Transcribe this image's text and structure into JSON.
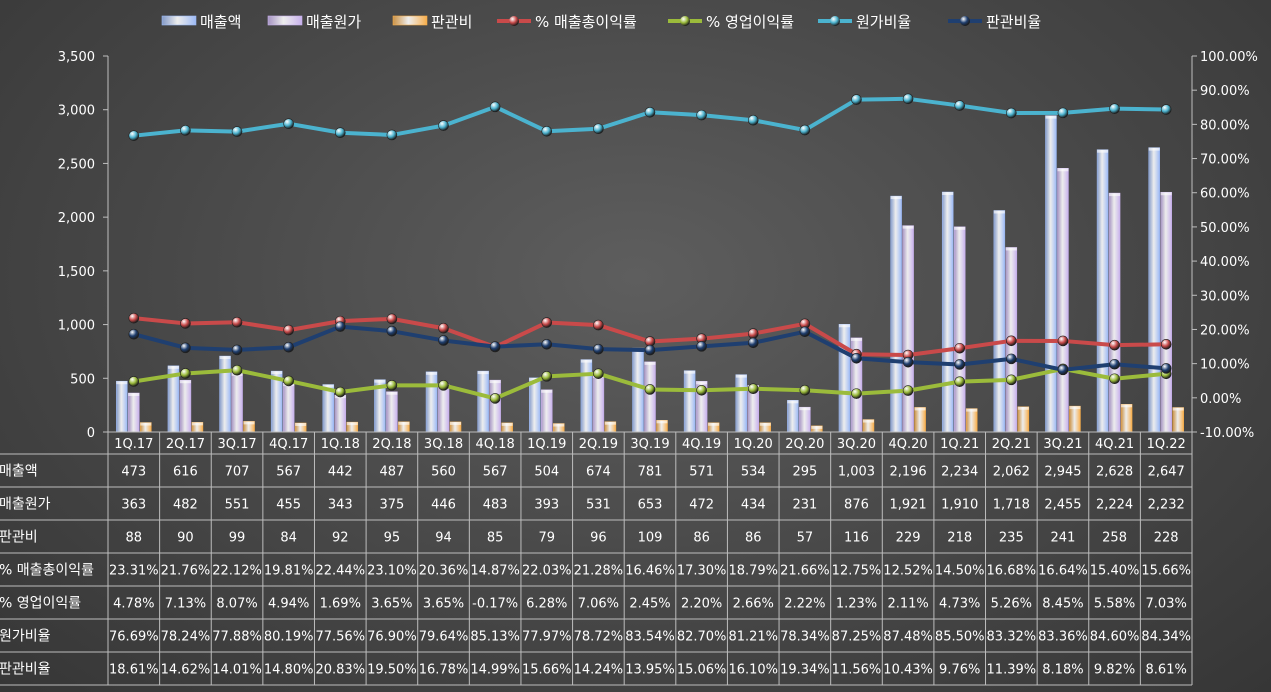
{
  "chart_data": {
    "type": "bar+line",
    "categories": [
      "1Q.17",
      "2Q.17",
      "3Q.17",
      "4Q.17",
      "1Q.18",
      "2Q.18",
      "3Q.18",
      "4Q.18",
      "1Q.19",
      "2Q.19",
      "3Q.19",
      "4Q.19",
      "1Q.20",
      "2Q.20",
      "3Q.20",
      "4Q.20",
      "1Q.21",
      "2Q.21",
      "3Q.21",
      "4Q.21",
      "1Q.22"
    ],
    "y_left": {
      "min": 0,
      "max": 3500,
      "step": 500,
      "ticks": [
        "0",
        "500",
        "1,000",
        "1,500",
        "2,000",
        "2,500",
        "3,000",
        "3,500"
      ]
    },
    "y_right": {
      "min": -10,
      "max": 100,
      "step": 10,
      "ticks": [
        "-10.00%",
        "0.00%",
        "10.00%",
        "20.00%",
        "30.00%",
        "40.00%",
        "50.00%",
        "60.00%",
        "70.00%",
        "80.00%",
        "90.00%",
        "100.00%"
      ]
    },
    "bar_series": [
      {
        "name": "매출액",
        "color": "#9cb9f5",
        "values": [
          473,
          616,
          707,
          567,
          442,
          487,
          560,
          567,
          504,
          674,
          781,
          571,
          534,
          295,
          1003,
          2196,
          2234,
          2062,
          2945,
          2628,
          2647
        ],
        "labels": [
          "473",
          "616",
          "707",
          "567",
          "442",
          "487",
          "560",
          "567",
          "504",
          "674",
          "781",
          "571",
          "534",
          "295",
          "1,003",
          "2,196",
          "2,234",
          "2,062",
          "2,945",
          "2,628",
          "2,647"
        ]
      },
      {
        "name": "매출원가",
        "color": "#c7b0ec",
        "values": [
          363,
          482,
          551,
          455,
          343,
          375,
          446,
          483,
          393,
          531,
          653,
          472,
          434,
          231,
          876,
          1921,
          1910,
          1718,
          2455,
          2224,
          2232
        ],
        "labels": [
          "363",
          "482",
          "551",
          "455",
          "343",
          "375",
          "446",
          "483",
          "393",
          "531",
          "653",
          "472",
          "434",
          "231",
          "876",
          "1,921",
          "1,910",
          "1,718",
          "2,455",
          "2,224",
          "2,232"
        ]
      },
      {
        "name": "판관비",
        "color": "#f7ad4a",
        "values": [
          88,
          90,
          99,
          84,
          92,
          95,
          94,
          85,
          79,
          96,
          109,
          86,
          86,
          57,
          116,
          229,
          218,
          235,
          241,
          258,
          228
        ],
        "labels": [
          "88",
          "90",
          "99",
          "84",
          "92",
          "95",
          "94",
          "85",
          "79",
          "96",
          "109",
          "86",
          "86",
          "57",
          "116",
          "229",
          "218",
          "235",
          "241",
          "258",
          "228"
        ]
      }
    ],
    "line_series": [
      {
        "name": "% 매출총이익률",
        "color": "#c94a4a",
        "values": [
          23.31,
          21.76,
          22.12,
          19.81,
          22.44,
          23.1,
          20.36,
          14.87,
          22.03,
          21.28,
          16.46,
          17.3,
          18.79,
          21.66,
          12.75,
          12.52,
          14.5,
          16.68,
          16.64,
          15.4,
          15.66
        ],
        "labels": [
          "23.31%",
          "21.76%",
          "22.12%",
          "19.81%",
          "22.44%",
          "23.10%",
          "20.36%",
          "14.87%",
          "22.03%",
          "21.28%",
          "16.46%",
          "17.30%",
          "18.79%",
          "21.66%",
          "12.75%",
          "12.52%",
          "14.50%",
          "16.68%",
          "16.64%",
          "15.40%",
          "15.66%"
        ]
      },
      {
        "name": "% 영업이익률",
        "color": "#9bbb3b",
        "values": [
          4.78,
          7.13,
          8.07,
          4.94,
          1.69,
          3.65,
          3.65,
          -0.17,
          6.28,
          7.06,
          2.45,
          2.2,
          2.66,
          2.22,
          1.23,
          2.11,
          4.73,
          5.26,
          8.45,
          5.58,
          7.03
        ],
        "labels": [
          "4.78%",
          "7.13%",
          "8.07%",
          "4.94%",
          "1.69%",
          "3.65%",
          "3.65%",
          "-0.17%",
          "6.28%",
          "7.06%",
          "2.45%",
          "2.20%",
          "2.66%",
          "2.22%",
          "1.23%",
          "2.11%",
          "4.73%",
          "5.26%",
          "8.45%",
          "5.58%",
          "7.03%"
        ]
      },
      {
        "name": "원가비율",
        "color": "#4bb3cf",
        "values": [
          76.69,
          78.24,
          77.88,
          80.19,
          77.56,
          76.9,
          79.64,
          85.13,
          77.97,
          78.72,
          83.54,
          82.7,
          81.21,
          78.34,
          87.25,
          87.48,
          85.5,
          83.32,
          83.36,
          84.6,
          84.34
        ],
        "labels": [
          "76.69%",
          "78.24%",
          "77.88%",
          "80.19%",
          "77.56%",
          "76.90%",
          "79.64%",
          "85.13%",
          "77.97%",
          "78.72%",
          "83.54%",
          "82.70%",
          "81.21%",
          "78.34%",
          "87.25%",
          "87.48%",
          "85.50%",
          "83.32%",
          "83.36%",
          "84.60%",
          "84.34%"
        ]
      },
      {
        "name": "판관비율",
        "color": "#1f3f70",
        "values": [
          18.61,
          14.62,
          14.01,
          14.8,
          20.83,
          19.5,
          16.78,
          14.99,
          15.66,
          14.24,
          13.95,
          15.06,
          16.1,
          19.34,
          11.56,
          10.43,
          9.76,
          11.39,
          8.18,
          9.82,
          8.61
        ],
        "labels": [
          "18.61%",
          "14.62%",
          "14.01%",
          "14.80%",
          "20.83%",
          "19.50%",
          "16.78%",
          "14.99%",
          "15.66%",
          "14.24%",
          "13.95%",
          "15.06%",
          "16.10%",
          "19.34%",
          "11.56%",
          "10.43%",
          "9.76%",
          "11.39%",
          "8.18%",
          "9.82%",
          "8.61%"
        ]
      }
    ],
    "legend_position": "top",
    "legend": [
      "매출액",
      "매출원가",
      "판관비",
      "% 매출총이익률",
      "% 영업이익률",
      "원가비율",
      "판관비율"
    ],
    "data_table": true,
    "grid": false
  }
}
